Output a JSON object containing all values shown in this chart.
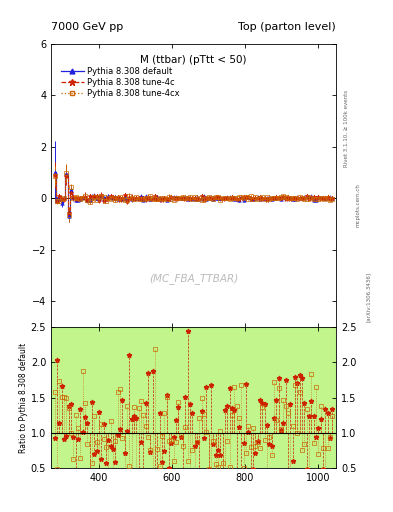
{
  "title_left": "7000 GeV pp",
  "title_right": "Top (parton level)",
  "plot_title": "M (ttbar) (pTtt < 50)",
  "watermark": "(MC_FBA_TTBAR)",
  "rivet_label": "Rivet 3.1.10, ≥ 100k events",
  "arxiv_label": "[arXiv:1306.3436]",
  "mcplots_label": "mcplots.cern.ch",
  "ylabel_ratio": "Ratio to Pythia 8.308 default",
  "ylim_main": [
    -5,
    6
  ],
  "ylim_ratio": [
    0.5,
    2.5
  ],
  "xlim": [
    270,
    1050
  ],
  "legend_entries": [
    {
      "label": "Pythia 8.308 default",
      "color": "#2222dd",
      "linestyle": "-",
      "marker": "^"
    },
    {
      "label": "Pythia 8.308 tune-4c",
      "color": "#cc2200",
      "linestyle": "--",
      "marker": "*"
    },
    {
      "label": "Pythia 8.308 tune-4cx",
      "color": "#cc6600",
      "linestyle": ":",
      "marker": "s"
    }
  ],
  "colors": {
    "blue": "#2222dd",
    "red": "#cc2200",
    "orange": "#cc6600",
    "green": "#90ee90",
    "yellow": "#ffff88"
  },
  "main_yticks": [
    -4,
    -2,
    0,
    2,
    4,
    6
  ],
  "ratio_yticks": [
    0.5,
    1.0,
    1.5,
    2.0,
    2.5
  ],
  "xticks": [
    400,
    600,
    800,
    1000
  ]
}
